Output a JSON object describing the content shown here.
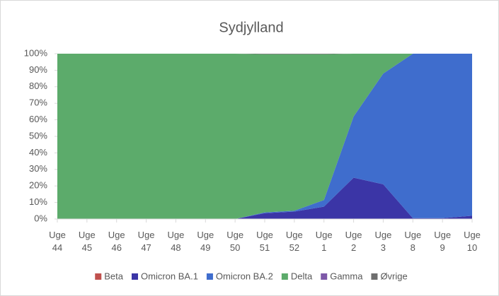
{
  "chart_data": {
    "type": "stacked_area",
    "title": "Sydjylland",
    "categories": [
      "Uge 44",
      "Uge 45",
      "Uge 46",
      "Uge 47",
      "Uge 48",
      "Uge 49",
      "Uge 50",
      "Uge 51",
      "Uge 52",
      "Uge 1",
      "Uge 2",
      "Uge 3",
      "Uge 8",
      "Uge 9",
      "Uge 10"
    ],
    "series": [
      {
        "name": "Beta",
        "color": "#c0504d",
        "values": [
          0,
          0,
          0,
          0,
          0,
          0,
          0,
          0,
          0,
          0,
          0,
          0,
          0,
          0,
          0
        ]
      },
      {
        "name": "Omicron BA.1",
        "color": "#3b35a6",
        "values": [
          0,
          0,
          0,
          0,
          0,
          0,
          0,
          3.5,
          4.5,
          7.5,
          25,
          21,
          0.5,
          0.5,
          2
        ]
      },
      {
        "name": "Omicron BA.2",
        "color": "#3f6dcd",
        "values": [
          0,
          0,
          0,
          0,
          0,
          0,
          0,
          0.5,
          0.5,
          4,
          37,
          67,
          99.5,
          99.5,
          98
        ]
      },
      {
        "name": "Delta",
        "color": "#5cab6b",
        "values": [
          100,
          100,
          100,
          100,
          100,
          100,
          100,
          95.7,
          94.7,
          88.2,
          38,
          12,
          0,
          0,
          0
        ]
      },
      {
        "name": "Gamma",
        "color": "#7d59a8",
        "values": [
          0,
          0,
          0,
          0,
          0,
          0,
          0,
          0,
          0,
          0,
          0,
          0,
          0,
          0,
          0
        ]
      },
      {
        "name": "Øvrige",
        "color": "#6e6e6e",
        "values": [
          0,
          0,
          0,
          0,
          0,
          0,
          0,
          0.3,
          0.3,
          0.3,
          0,
          0,
          0,
          0,
          0
        ]
      }
    ],
    "ylim": [
      0,
      100
    ],
    "yticks": [
      {
        "value": 0,
        "label": "0%"
      },
      {
        "value": 10,
        "label": "10%"
      },
      {
        "value": 20,
        "label": "20%"
      },
      {
        "value": 30,
        "label": "30%"
      },
      {
        "value": 40,
        "label": "40%"
      },
      {
        "value": 50,
        "label": "50%"
      },
      {
        "value": 60,
        "label": "60%"
      },
      {
        "value": 70,
        "label": "70%"
      },
      {
        "value": 80,
        "label": "80%"
      },
      {
        "value": 90,
        "label": "90%"
      },
      {
        "value": 100,
        "label": "100%"
      }
    ],
    "legend": "bottom"
  }
}
